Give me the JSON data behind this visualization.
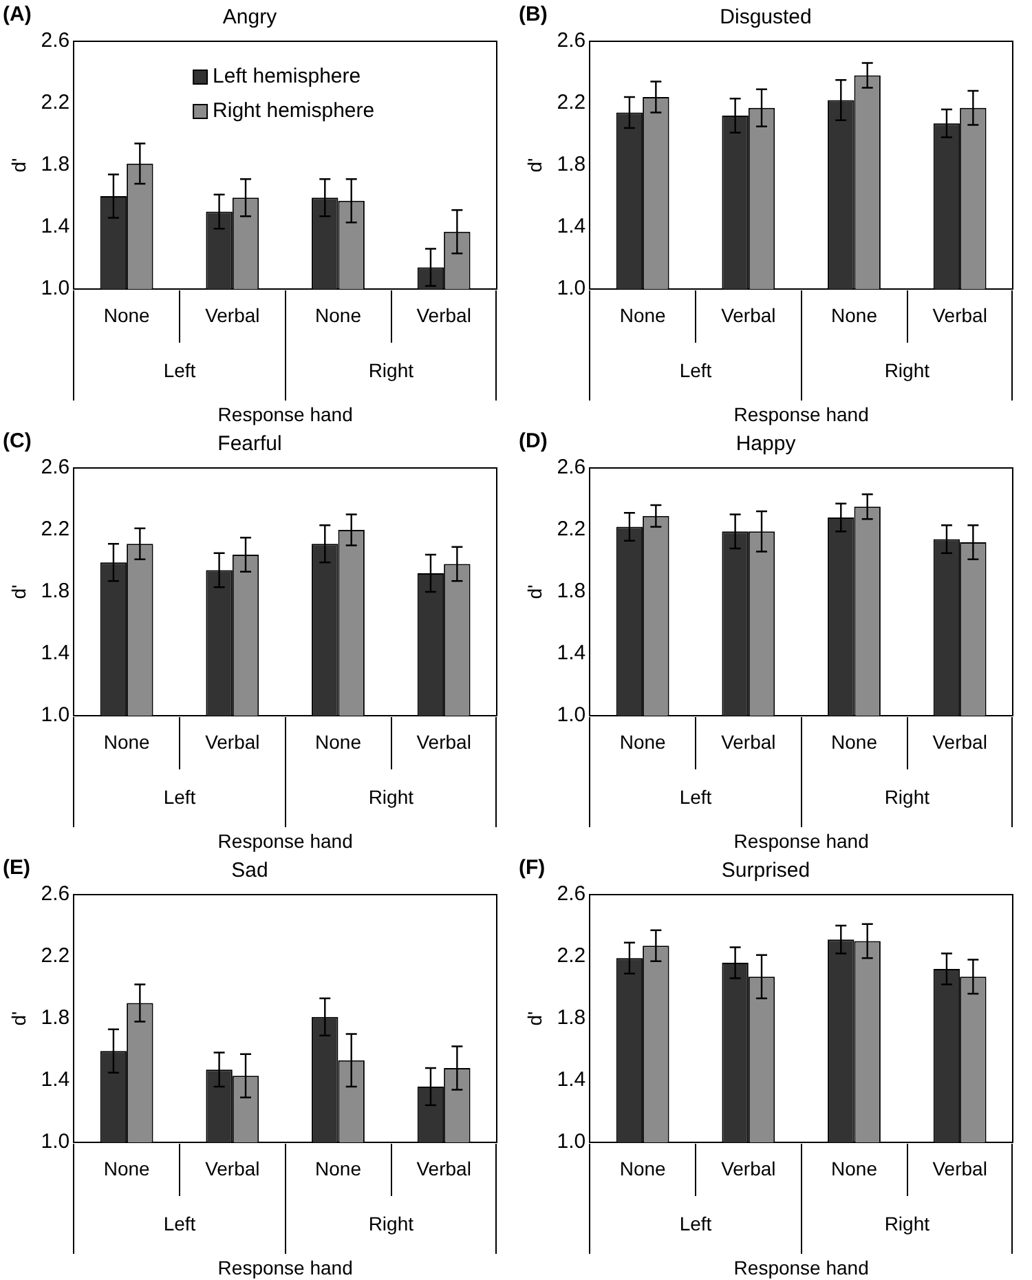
{
  "chart_data": [
    {
      "type": "bar",
      "title": "Angry",
      "xlabel": "Response hand",
      "ylabel": "d'",
      "annotations": [
        "(A)",
        "Left",
        "Right"
      ],
      "categories": [
        "None",
        "Verbal",
        "None",
        "Verbal"
      ],
      "legend": "top",
      "ylim": [
        1.0,
        2.6
      ],
      "yticks": [
        {
          "value": 1.0,
          "label": "1.0"
        },
        {
          "value": 1.4,
          "label": "1.4"
        },
        {
          "value": 1.8,
          "label": "1.8"
        },
        {
          "value": 2.2,
          "label": "2.2"
        },
        {
          "value": 2.6,
          "label": "2.6"
        }
      ],
      "series": [
        {
          "name": "Left hemisphere",
          "color": "#333333",
          "values": [
            1.6,
            1.5,
            1.59,
            1.14
          ],
          "errors": [
            0.14,
            0.11,
            0.12,
            0.12
          ]
        },
        {
          "name": "Right hemisphere",
          "color": "#8c8c8c",
          "values": [
            1.81,
            1.59,
            1.57,
            1.37
          ],
          "errors": [
            0.13,
            0.12,
            0.14,
            0.14
          ]
        }
      ]
    },
    {
      "type": "bar",
      "title": "Disgusted",
      "xlabel": "Response hand",
      "ylabel": "d'",
      "annotations": [
        "(B)",
        "Left",
        "Right"
      ],
      "categories": [
        "None",
        "Verbal",
        "None",
        "Verbal"
      ],
      "ylim": [
        1.0,
        2.6
      ],
      "yticks": [
        {
          "value": 1.0,
          "label": "1.0"
        },
        {
          "value": 1.4,
          "label": "1.4"
        },
        {
          "value": 1.8,
          "label": "1.8"
        },
        {
          "value": 2.2,
          "label": "2.2"
        },
        {
          "value": 2.6,
          "label": "2.6"
        }
      ],
      "series": [
        {
          "color": "#333333",
          "values": [
            2.14,
            2.12,
            2.22,
            2.07
          ],
          "errors": [
            0.1,
            0.11,
            0.13,
            0.09
          ]
        },
        {
          "color": "#8c8c8c",
          "values": [
            2.24,
            2.17,
            2.38,
            2.17
          ],
          "errors": [
            0.1,
            0.12,
            0.08,
            0.11
          ]
        }
      ]
    },
    {
      "type": "bar",
      "title": "Fearful",
      "xlabel": "Response hand",
      "ylabel": "d'",
      "annotations": [
        "(C)",
        "Left",
        "Right"
      ],
      "categories": [
        "None",
        "Verbal",
        "None",
        "Verbal"
      ],
      "ylim": [
        1.0,
        2.6
      ],
      "yticks": [
        {
          "value": 1.0,
          "label": "1.0"
        },
        {
          "value": 1.4,
          "label": "1.4"
        },
        {
          "value": 1.8,
          "label": "1.8"
        },
        {
          "value": 2.2,
          "label": "2.2"
        },
        {
          "value": 2.6,
          "label": "2.6"
        }
      ],
      "series": [
        {
          "color": "#333333",
          "values": [
            1.99,
            1.94,
            2.11,
            1.92
          ],
          "errors": [
            0.12,
            0.11,
            0.12,
            0.12
          ]
        },
        {
          "color": "#8c8c8c",
          "values": [
            2.11,
            2.04,
            2.2,
            1.98
          ],
          "errors": [
            0.1,
            0.11,
            0.1,
            0.11
          ]
        }
      ]
    },
    {
      "type": "bar",
      "title": "Happy",
      "xlabel": "Response hand",
      "ylabel": "d'",
      "annotations": [
        "(D)",
        "Left",
        "Right"
      ],
      "categories": [
        "None",
        "Verbal",
        "None",
        "Verbal"
      ],
      "ylim": [
        1.0,
        2.6
      ],
      "yticks": [
        {
          "value": 1.0,
          "label": "1.0"
        },
        {
          "value": 1.4,
          "label": "1.4"
        },
        {
          "value": 1.8,
          "label": "1.8"
        },
        {
          "value": 2.2,
          "label": "2.2"
        },
        {
          "value": 2.6,
          "label": "2.6"
        }
      ],
      "series": [
        {
          "color": "#333333",
          "values": [
            2.22,
            2.19,
            2.28,
            2.14
          ],
          "errors": [
            0.09,
            0.11,
            0.09,
            0.09
          ]
        },
        {
          "color": "#8c8c8c",
          "values": [
            2.29,
            2.19,
            2.35,
            2.12
          ],
          "errors": [
            0.07,
            0.13,
            0.08,
            0.11
          ]
        }
      ]
    },
    {
      "type": "bar",
      "title": "Sad",
      "xlabel": "Response hand",
      "ylabel": "d'",
      "annotations": [
        "(E)",
        "Left",
        "Right"
      ],
      "categories": [
        "None",
        "Verbal",
        "None",
        "Verbal"
      ],
      "ylim": [
        1.0,
        2.6
      ],
      "yticks": [
        {
          "value": 1.0,
          "label": "1.0"
        },
        {
          "value": 1.4,
          "label": "1.4"
        },
        {
          "value": 1.8,
          "label": "1.8"
        },
        {
          "value": 2.2,
          "label": "2.2"
        },
        {
          "value": 2.6,
          "label": "2.6"
        }
      ],
      "series": [
        {
          "color": "#333333",
          "values": [
            1.59,
            1.47,
            1.81,
            1.36
          ],
          "errors": [
            0.14,
            0.11,
            0.12,
            0.12
          ]
        },
        {
          "color": "#8c8c8c",
          "values": [
            1.9,
            1.43,
            1.53,
            1.48
          ],
          "errors": [
            0.12,
            0.14,
            0.17,
            0.14
          ]
        }
      ]
    },
    {
      "type": "bar",
      "title": "Surprised",
      "xlabel": "Response hand",
      "ylabel": "d'",
      "annotations": [
        "(F)",
        "Left",
        "Right"
      ],
      "categories": [
        "None",
        "Verbal",
        "None",
        "Verbal"
      ],
      "ylim": [
        1.0,
        2.6
      ],
      "yticks": [
        {
          "value": 1.0,
          "label": "1.0"
        },
        {
          "value": 1.4,
          "label": "1.4"
        },
        {
          "value": 1.8,
          "label": "1.8"
        },
        {
          "value": 2.2,
          "label": "2.2"
        },
        {
          "value": 2.6,
          "label": "2.6"
        }
      ],
      "series": [
        {
          "color": "#333333",
          "values": [
            2.19,
            2.16,
            2.31,
            2.12
          ],
          "errors": [
            0.1,
            0.1,
            0.09,
            0.1
          ]
        },
        {
          "color": "#8c8c8c",
          "values": [
            2.27,
            2.07,
            2.3,
            2.07
          ],
          "errors": [
            0.1,
            0.14,
            0.11,
            0.11
          ]
        }
      ]
    }
  ]
}
